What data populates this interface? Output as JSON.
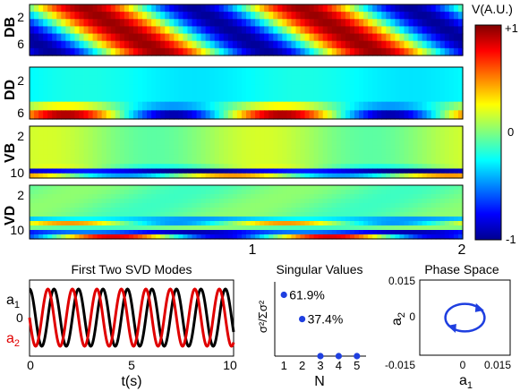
{
  "colorbar": {
    "title": "V(A.U.)",
    "ticks": [
      "+1",
      "0",
      "-1"
    ]
  },
  "heatmap_panels": [
    {
      "label": "DB",
      "y_ticks": [
        "2",
        "6"
      ]
    },
    {
      "label": "DD",
      "y_ticks": [
        "2",
        "6"
      ]
    },
    {
      "label": "VB",
      "y_ticks": [
        "2",
        "10"
      ]
    },
    {
      "label": "VD",
      "y_ticks": [
        "2",
        "10"
      ]
    }
  ],
  "heatmap_x_ticks": [
    "1",
    "2"
  ],
  "chart_data": [
    {
      "type": "heatmap",
      "panel": "DB",
      "description_rows": 7,
      "x_range": [
        0,
        2
      ],
      "pattern": "traveling wave, two periods across 0-2",
      "value_range": [
        -1,
        1
      ]
    },
    {
      "type": "heatmap",
      "panel": "DD",
      "x_range": [
        0,
        2
      ],
      "value_range": [
        -1,
        1
      ]
    },
    {
      "type": "heatmap",
      "panel": "VB",
      "x_range": [
        0,
        2
      ],
      "value_range": [
        -1,
        1
      ]
    },
    {
      "type": "heatmap",
      "panel": "VD",
      "x_range": [
        0,
        2
      ],
      "value_range": [
        -1,
        1
      ]
    },
    {
      "type": "line",
      "title": "First Two SVD Modes",
      "xlabel": "t(s)",
      "xlim": [
        0,
        10
      ],
      "x_ticks": [
        "0",
        "5",
        "10"
      ],
      "y_ticks": [
        "0"
      ],
      "series": [
        {
          "name": "a1",
          "color": "#000000",
          "period": 1.2,
          "phase": 0.0
        },
        {
          "name": "a2",
          "color": "#e00000",
          "period": 1.2,
          "phase": 1.5708
        }
      ]
    },
    {
      "type": "scatter",
      "title": "Singular Values",
      "xlabel": "N",
      "ylabel": "σ²/Σσ²",
      "x": [
        1,
        2,
        3,
        4,
        5
      ],
      "y": [
        0.619,
        0.374,
        0.0,
        0.0,
        0.0
      ],
      "labels": [
        "61.9%",
        "37.4%",
        "",
        "",
        ""
      ],
      "x_ticks": [
        "1",
        "2",
        "3",
        "4",
        "5"
      ],
      "xlim": [
        0.5,
        5.5
      ],
      "ylim": [
        0,
        0.75
      ],
      "color": "#1f3fe0"
    },
    {
      "type": "line",
      "title": "Phase Space",
      "xlabel": "a1",
      "ylabel": "a2",
      "xlim": [
        -0.015,
        0.015
      ],
      "ylim": [
        -0.015,
        0.015
      ],
      "x_ticks": [
        "-0.015",
        "0",
        "0.015"
      ],
      "y_ticks": [
        "0.015",
        "0",
        "-0.015"
      ],
      "ellipse": {
        "rx": 0.0065,
        "ry": 0.0055
      },
      "color": "#1f3fe0"
    }
  ],
  "labels": {
    "a1_main": "a",
    "a1_sub": "1",
    "a2_main": "a",
    "a2_sub": "2",
    "zero": "0"
  }
}
